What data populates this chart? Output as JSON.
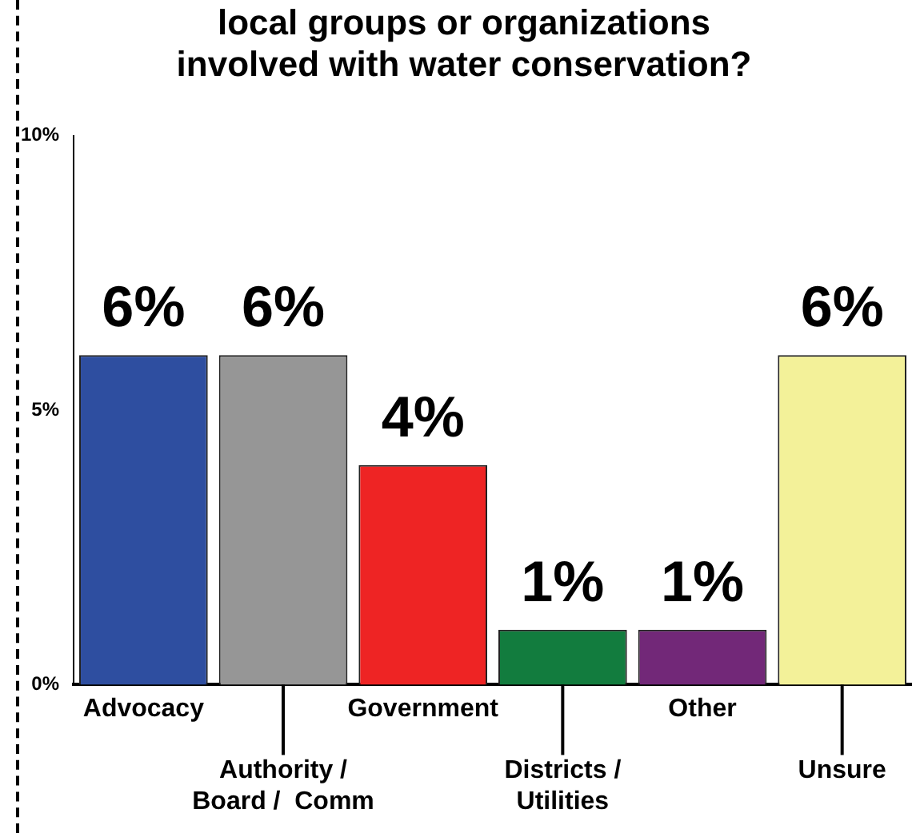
{
  "chart_data": {
    "type": "bar",
    "title": [
      "local groups or organizations",
      "involved with water conservation?"
    ],
    "categories": [
      "Advocacy",
      "Authority / Board /  Comm",
      "Government",
      "Districts / Utilities",
      "Other",
      "Unsure"
    ],
    "values": [
      6,
      6,
      4,
      1,
      1,
      6
    ],
    "colors": [
      "#2e4ea0",
      "#969696",
      "#ee2424",
      "#127c3e",
      "#722878",
      "#f3f199"
    ],
    "value_labels": [
      "6%",
      "6%",
      "4%",
      "1%",
      "1%",
      "6%"
    ],
    "ylim": [
      0,
      10
    ],
    "yticks": [
      {
        "value": 0,
        "label": "0%"
      },
      {
        "value": 5,
        "label": "5%"
      },
      {
        "value": 10,
        "label": "10%"
      }
    ],
    "grid": false,
    "legend": false
  }
}
